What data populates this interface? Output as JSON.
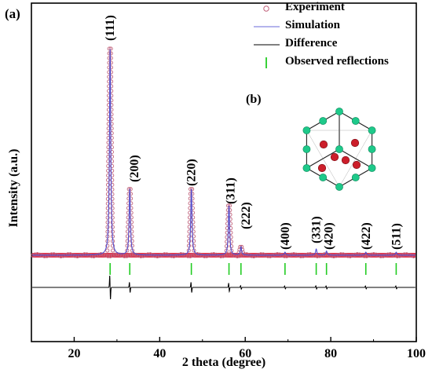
{
  "panel_labels": {
    "a": "(a)",
    "b": "(b)"
  },
  "legend": [
    {
      "label": "Experiment",
      "marker": "circle",
      "color": "#c0607a"
    },
    {
      "label": "Simulation",
      "marker": "line",
      "color": "#6a6ad8"
    },
    {
      "label": "Difference",
      "marker": "line",
      "color": "#000000"
    },
    {
      "label": "Observed reflections",
      "marker": "tick",
      "color": "#22cc22"
    }
  ],
  "chart_data": {
    "type": "line",
    "xlabel": "2 theta (degree)",
    "ylabel": "Intensity (a.u.)",
    "xlim": [
      10,
      100
    ],
    "xticks": [
      20,
      40,
      60,
      80,
      100
    ],
    "colors": {
      "experiment": "#c0607a",
      "experiment_fill": "#d81030",
      "simulation": "#5050d0",
      "difference": "#000000",
      "reflections": "#22cc22"
    },
    "peaks": [
      {
        "two_theta": 28.4,
        "label": "(111)",
        "relative_intensity": 100
      },
      {
        "two_theta": 33.0,
        "label": "(200)",
        "relative_intensity": 32
      },
      {
        "two_theta": 47.4,
        "label": "(220)",
        "relative_intensity": 32
      },
      {
        "two_theta": 56.2,
        "label": "(311)",
        "relative_intensity": 24
      },
      {
        "two_theta": 59.0,
        "label": "(222)",
        "relative_intensity": 4
      },
      {
        "two_theta": 69.3,
        "label": "(400)",
        "relative_intensity": 1.5
      },
      {
        "two_theta": 76.6,
        "label": "(331)",
        "relative_intensity": 3
      },
      {
        "two_theta": 79.0,
        "label": "(420)",
        "relative_intensity": 2
      },
      {
        "two_theta": 88.2,
        "label": "(422)",
        "relative_intensity": 1.5
      },
      {
        "two_theta": 95.3,
        "label": "(511)",
        "relative_intensity": 1.5
      }
    ],
    "observed_reflections": [
      28.4,
      33.0,
      47.4,
      56.2,
      59.0,
      69.3,
      76.6,
      79.0,
      88.2,
      95.3
    ],
    "series": [
      {
        "name": "Experiment"
      },
      {
        "name": "Simulation"
      },
      {
        "name": "Difference"
      },
      {
        "name": "Observed reflections"
      }
    ]
  }
}
